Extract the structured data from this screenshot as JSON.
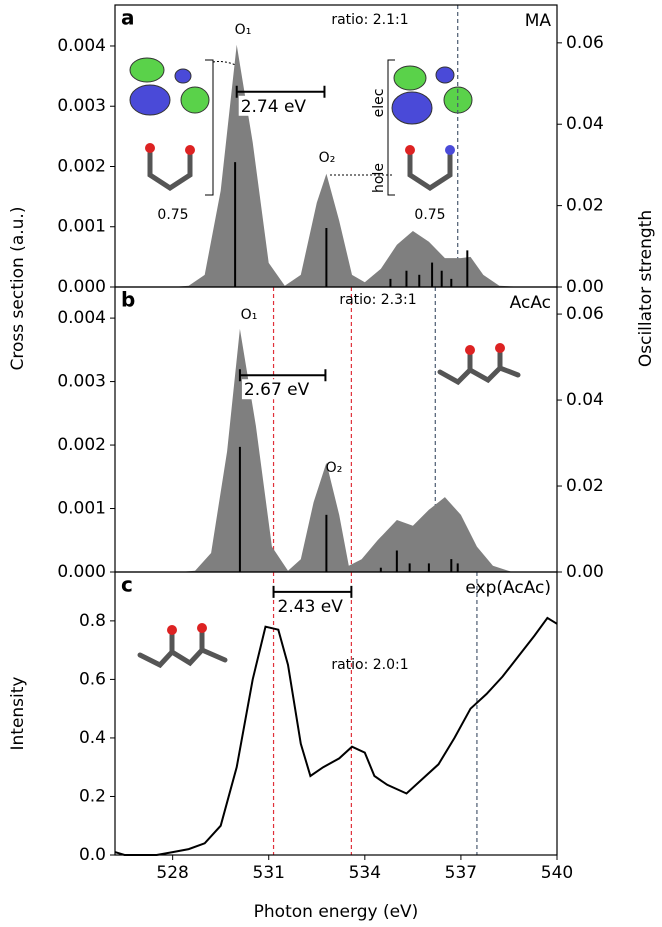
{
  "chart_data": [
    {
      "type": "area",
      "panel_label": "a",
      "title": "MA",
      "ylabel": "Cross section (a.u.)",
      "y2label": "Oscillator strength",
      "annotations": [
        "ratio: 2.1:1",
        "O₁",
        "O₂",
        "0.75",
        "0.75",
        "elec",
        "hole"
      ],
      "xlim": [
        526.2,
        540
      ],
      "ylim": [
        0,
        0.00468
      ],
      "yticks": [
        {
          "value": 0,
          "label": "0.000"
        },
        {
          "value": 0.001,
          "label": "0.001"
        },
        {
          "value": 0.002,
          "label": "0.002"
        },
        {
          "value": 0.003,
          "label": "0.003"
        },
        {
          "value": 0.004,
          "label": "0.004"
        }
      ],
      "y2lim": [
        0,
        0.0693
      ],
      "y2ticks": [
        {
          "value": 0,
          "label": "0.00"
        },
        {
          "value": 0.02,
          "label": "0.02"
        },
        {
          "value": 0.04,
          "label": "0.04"
        },
        {
          "value": 0.06,
          "label": "0.06"
        }
      ],
      "area": {
        "color": "#7f7f7f",
        "x": [
          528.0,
          528.5,
          529.0,
          529.5,
          530.0,
          530.5,
          531.0,
          531.5,
          532.0,
          532.5,
          532.8,
          533.2,
          533.6,
          534.0,
          534.5,
          535.0,
          535.5,
          536.0,
          536.5,
          537.0,
          537.3,
          537.7,
          538.2,
          539.0
        ],
        "values": [
          0,
          2e-05,
          0.0002,
          0.0016,
          0.00402,
          0.0024,
          0.0004,
          2e-05,
          0.0002,
          0.0014,
          0.00188,
          0.0011,
          0.0002,
          8e-05,
          0.0003,
          0.0007,
          0.00093,
          0.00075,
          0.00048,
          0.00048,
          0.0005,
          0.0002,
          2e-05,
          0
        ]
      },
      "sticks": {
        "color": "#000000",
        "axis": "y2",
        "x": [
          529.95,
          532.8,
          534.8,
          535.3,
          535.7,
          536.1,
          536.4,
          536.7,
          537.2
        ],
        "values": [
          0.0307,
          0.0145,
          0.002,
          0.004,
          0.003,
          0.006,
          0.004,
          0.002,
          0.009
        ]
      },
      "vlines": [
        {
          "x": 536.9,
          "color": "#4a5a70"
        }
      ],
      "brackets": [
        {
          "x": [
            530.0,
            532.74
          ],
          "y": 0.00324,
          "label": "2.74 eV"
        }
      ]
    },
    {
      "type": "area",
      "panel_label": "b",
      "title": "AcAc",
      "annotations": [
        "ratio: 2.3:1",
        "O₁",
        "O₂"
      ],
      "xlim": [
        526.2,
        540
      ],
      "ylim": [
        0,
        0.00449
      ],
      "yticks": [
        {
          "value": 0,
          "label": "0.000"
        },
        {
          "value": 0.001,
          "label": "0.001"
        },
        {
          "value": 0.002,
          "label": "0.002"
        },
        {
          "value": 0.003,
          "label": "0.003"
        },
        {
          "value": 0.004,
          "label": "0.004"
        }
      ],
      "y2lim": [
        0,
        0.0663
      ],
      "y2ticks": [
        {
          "value": 0,
          "label": "0.00"
        },
        {
          "value": 0.02,
          "label": "0.02"
        },
        {
          "value": 0.04,
          "label": "0.04"
        },
        {
          "value": 0.06,
          "label": "0.06"
        }
      ],
      "area": {
        "color": "#7f7f7f",
        "x": [
          528.2,
          528.7,
          529.2,
          529.7,
          530.1,
          530.6,
          531.1,
          531.6,
          532.0,
          532.4,
          532.8,
          533.2,
          533.5,
          533.9,
          534.4,
          535.0,
          535.5,
          536.0,
          536.5,
          537.0,
          537.5,
          538.0,
          538.6
        ],
        "values": [
          0,
          2e-05,
          0.0003,
          0.0019,
          0.00383,
          0.0023,
          0.0004,
          2e-05,
          0.0002,
          0.0011,
          0.00172,
          0.0009,
          0.0001,
          0.0002,
          0.0005,
          0.00082,
          0.00073,
          0.00098,
          0.00118,
          0.0009,
          0.0004,
          0.0001,
          0
        ]
      },
      "sticks": {
        "color": "#000000",
        "axis": "y2",
        "x": [
          530.1,
          532.8,
          534.5,
          535.0,
          535.4,
          536.0,
          536.7,
          536.9
        ],
        "values": [
          0.0291,
          0.0133,
          0.001,
          0.005,
          0.002,
          0.002,
          0.003,
          0.002
        ]
      },
      "vlines": [
        {
          "x": 531.15,
          "color": "#e0303a"
        },
        {
          "x": 533.58,
          "color": "#e0303a"
        },
        {
          "x": 536.2,
          "color": "#4a5a70"
        }
      ],
      "brackets": [
        {
          "x": [
            530.1,
            532.77
          ],
          "y": 0.0031,
          "label": "2.67 eV"
        }
      ]
    },
    {
      "type": "line",
      "panel_label": "c",
      "title": "exp(AcAc)",
      "ylabel": "Intensity",
      "xlabel": "Photon energy (eV)",
      "annotations": [
        "ratio: 2.0:1"
      ],
      "xlim": [
        526.2,
        540
      ],
      "ylim": [
        0,
        0.967
      ],
      "xticks": [
        528,
        531,
        534,
        537,
        540
      ],
      "yticks": [
        {
          "value": 0,
          "label": "0.0"
        },
        {
          "value": 0.2,
          "label": "0.2"
        },
        {
          "value": 0.4,
          "label": "0.4"
        },
        {
          "value": 0.6,
          "label": "0.6"
        },
        {
          "value": 0.8,
          "label": "0.8"
        }
      ],
      "line": {
        "color": "#000000",
        "x": [
          526.2,
          526.5,
          527.0,
          527.5,
          528.0,
          528.5,
          529.0,
          529.5,
          530.0,
          530.5,
          530.9,
          531.3,
          531.6,
          532.0,
          532.3,
          532.7,
          533.2,
          533.6,
          534.0,
          534.3,
          534.7,
          535.3,
          535.8,
          536.3,
          536.8,
          537.3,
          537.8,
          538.3,
          538.8,
          539.3,
          539.7,
          540.0
        ],
        "values": [
          0.01,
          0.0,
          0.0,
          0.0,
          0.01,
          0.02,
          0.04,
          0.1,
          0.3,
          0.6,
          0.78,
          0.77,
          0.65,
          0.38,
          0.27,
          0.3,
          0.33,
          0.37,
          0.35,
          0.27,
          0.24,
          0.21,
          0.26,
          0.31,
          0.4,
          0.5,
          0.55,
          0.61,
          0.68,
          0.75,
          0.81,
          0.79
        ]
      },
      "vlines": [
        {
          "x": 531.15,
          "color": "#e0303a"
        },
        {
          "x": 533.58,
          "color": "#e0303a"
        },
        {
          "x": 537.5,
          "color": "#4a5a70"
        }
      ],
      "brackets": [
        {
          "x": [
            531.15,
            533.58
          ],
          "y": 0.899,
          "label": "2.43 eV"
        }
      ]
    }
  ]
}
